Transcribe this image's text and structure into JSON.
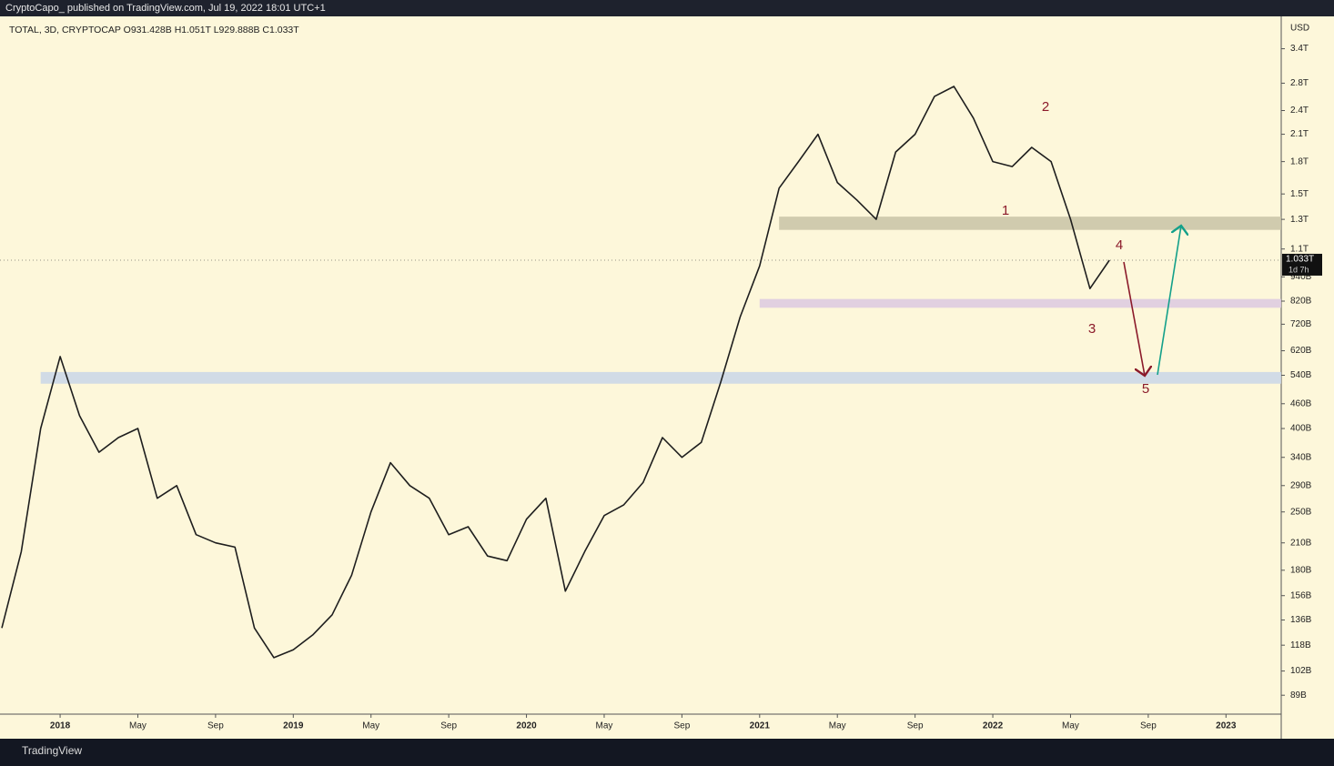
{
  "header": "CryptoCapo_  published on TradingView.com, Jul 19, 2022 18:01 UTC+1",
  "footer": "TradingView",
  "chart_data": {
    "type": "line",
    "title": "TOTAL, 3D, CRYPTOCAP  O931.428B  H1.051T  L929.888B  C1.033T",
    "y_axis_label": "USD",
    "log_scale": true,
    "color": "#1e1e1e",
    "x": [
      "2017-10",
      "2017-11",
      "2017-12",
      "2018-01",
      "2018-02",
      "2018-03",
      "2018-04",
      "2018-05",
      "2018-06",
      "2018-07",
      "2018-08",
      "2018-09",
      "2018-10",
      "2018-11",
      "2018-12",
      "2019-01",
      "2019-02",
      "2019-03",
      "2019-04",
      "2019-05",
      "2019-06",
      "2019-07",
      "2019-08",
      "2019-09",
      "2019-10",
      "2019-11",
      "2019-12",
      "2020-01",
      "2020-02",
      "2020-03",
      "2020-04",
      "2020-05",
      "2020-06",
      "2020-07",
      "2020-08",
      "2020-09",
      "2020-10",
      "2020-11",
      "2020-12",
      "2021-01",
      "2021-02",
      "2021-03",
      "2021-04",
      "2021-05",
      "2021-06",
      "2021-07",
      "2021-08",
      "2021-09",
      "2021-10",
      "2021-11",
      "2021-12",
      "2022-01",
      "2022-02",
      "2022-03",
      "2022-04",
      "2022-05",
      "2022-06",
      "2022-07"
    ],
    "values": [
      130,
      200,
      400,
      600,
      430,
      350,
      380,
      400,
      270,
      290,
      220,
      210,
      205,
      130,
      110,
      115,
      125,
      140,
      175,
      250,
      330,
      290,
      270,
      220,
      230,
      195,
      190,
      240,
      270,
      160,
      200,
      245,
      260,
      295,
      380,
      340,
      370,
      520,
      750,
      1000,
      1550,
      1800,
      2100,
      1600,
      1450,
      1300,
      1900,
      2100,
      2600,
      2750,
      2300,
      1800,
      1750,
      1950,
      1800,
      1300,
      880,
      1033
    ],
    "xlim": [
      "2017-10",
      "2023-03"
    ],
    "xticks": [
      {
        "value": "2018-01",
        "label": "2018"
      },
      {
        "value": "2018-05",
        "label": "May"
      },
      {
        "value": "2018-09",
        "label": "Sep"
      },
      {
        "value": "2019-01",
        "label": "2019"
      },
      {
        "value": "2019-05",
        "label": "May"
      },
      {
        "value": "2019-09",
        "label": "Sep"
      },
      {
        "value": "2020-01",
        "label": "2020"
      },
      {
        "value": "2020-05",
        "label": "May"
      },
      {
        "value": "2020-09",
        "label": "Sep"
      },
      {
        "value": "2021-01",
        "label": "2021"
      },
      {
        "value": "2021-05",
        "label": "May"
      },
      {
        "value": "2021-09",
        "label": "Sep"
      },
      {
        "value": "2022-01",
        "label": "2022"
      },
      {
        "value": "2022-05",
        "label": "May"
      },
      {
        "value": "2022-09",
        "label": "Sep"
      },
      {
        "value": "2023-01",
        "label": "2023"
      }
    ],
    "ylim": [
      80,
      4080
    ],
    "yticks": [
      {
        "value": 89,
        "label": "89B"
      },
      {
        "value": 102,
        "label": "102B"
      },
      {
        "value": 118,
        "label": "118B"
      },
      {
        "value": 136,
        "label": "136B"
      },
      {
        "value": 156,
        "label": "156B"
      },
      {
        "value": 180,
        "label": "180B"
      },
      {
        "value": 210,
        "label": "210B"
      },
      {
        "value": 250,
        "label": "250B"
      },
      {
        "value": 290,
        "label": "290B"
      },
      {
        "value": 340,
        "label": "340B"
      },
      {
        "value": 400,
        "label": "400B"
      },
      {
        "value": 460,
        "label": "460B"
      },
      {
        "value": 540,
        "label": "540B"
      },
      {
        "value": 620,
        "label": "620B"
      },
      {
        "value": 720,
        "label": "720B"
      },
      {
        "value": 820,
        "label": "820B"
      },
      {
        "value": 940,
        "label": "940B"
      },
      {
        "value": 1100,
        "label": "1.1T"
      },
      {
        "value": 1300,
        "label": "1.3T"
      },
      {
        "value": 1500,
        "label": "1.5T"
      },
      {
        "value": 1800,
        "label": "1.8T"
      },
      {
        "value": 2100,
        "label": "2.1T"
      },
      {
        "value": 2400,
        "label": "2.4T"
      },
      {
        "value": 2800,
        "label": "2.8T"
      },
      {
        "value": 3400,
        "label": "3.4T"
      }
    ],
    "last_price": {
      "value": 1033,
      "label": "1.033T"
    },
    "countdown": "1d 7h",
    "zones": [
      {
        "from": 1225,
        "to": 1320,
        "start": "2021-02",
        "color": "#c8c3a6"
      },
      {
        "from": 790,
        "to": 830,
        "start": "2021-01",
        "color": "#dcc9e0"
      },
      {
        "from": 515,
        "to": 550,
        "start": "2017-12",
        "color": "#c9d6e8"
      }
    ],
    "wave_labels": [
      "1",
      "2",
      "3",
      "4",
      "5"
    ]
  }
}
